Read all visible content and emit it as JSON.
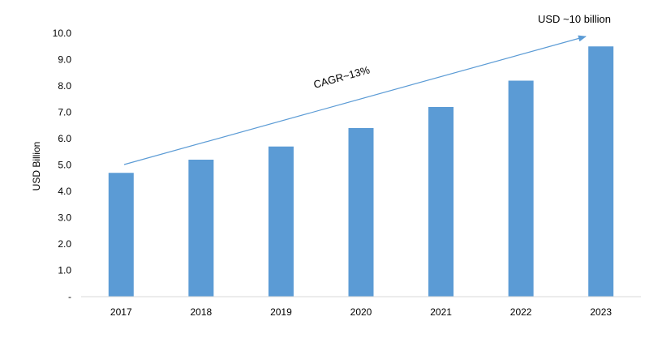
{
  "chart_data": {
    "type": "bar",
    "categories": [
      "2017",
      "2018",
      "2019",
      "2020",
      "2021",
      "2022",
      "2023"
    ],
    "values": [
      4.7,
      5.2,
      5.7,
      6.4,
      7.2,
      8.2,
      9.5
    ],
    "ylabel": "USD Billion",
    "ylim": [
      0,
      10
    ],
    "ytick_labels": [
      "-",
      "1.0",
      "2.0",
      "3.0",
      "4.0",
      "5.0",
      "6.0",
      "7.0",
      "8.0",
      "9.0",
      "10.0"
    ],
    "grid": false,
    "bar_color": "#5b9bd5",
    "arrow_color": "#5b9bd5",
    "annotations": {
      "cagr": "CAGR~13%",
      "end_value": "USD ~10 billion"
    }
  }
}
